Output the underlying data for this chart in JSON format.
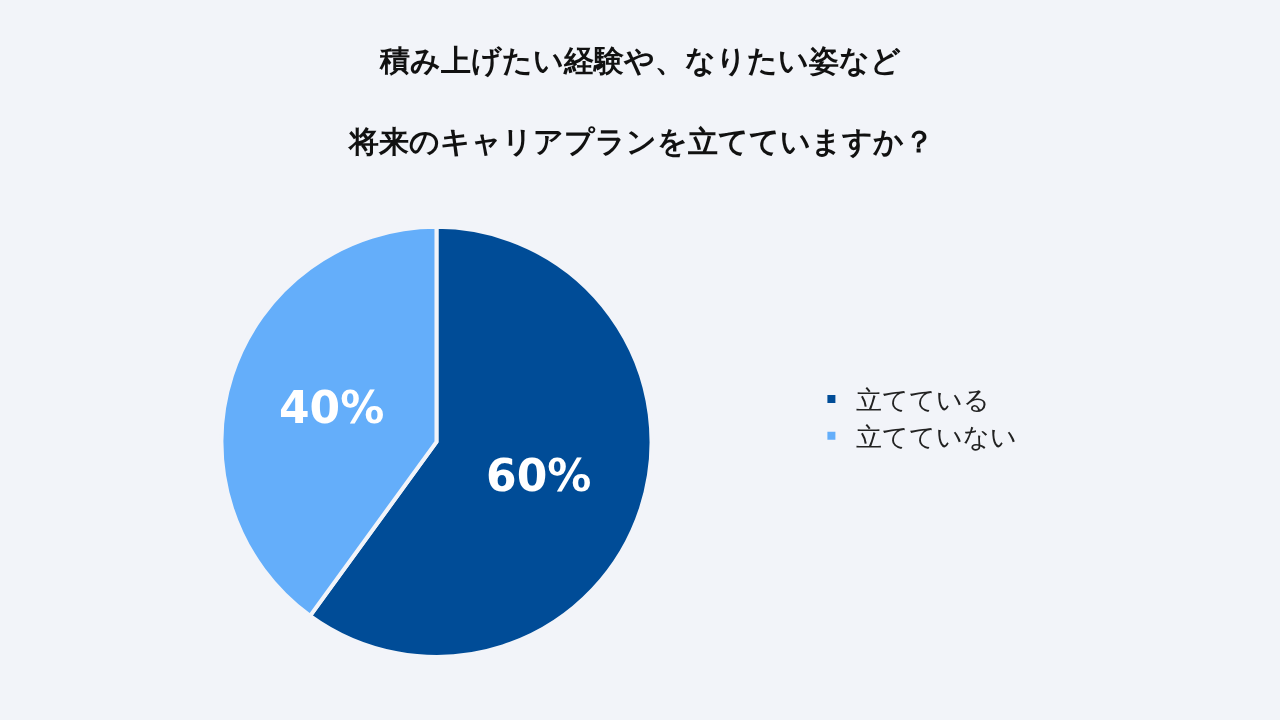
{
  "chart_data": {
    "type": "pie",
    "title": "積み上げたい経験や、なりたい姿など",
    "subtitle": "将来のキャリアプランを立てていますか？",
    "categories": [
      "立てている",
      "立てていない"
    ],
    "values": [
      60,
      40
    ],
    "colors": [
      "#004c97",
      "#64aefa"
    ],
    "value_labels": [
      "60%",
      "40%"
    ],
    "legend": "right"
  }
}
